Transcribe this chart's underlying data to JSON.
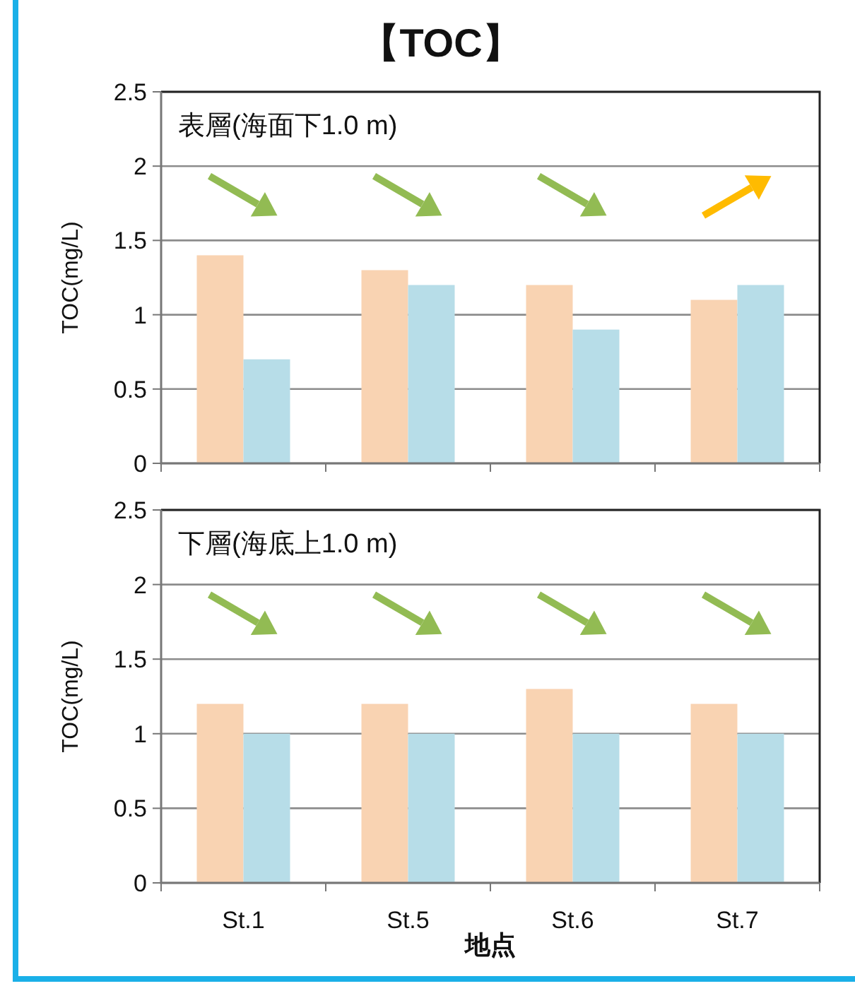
{
  "chart_data": [
    {
      "type": "bar",
      "title": "【TOC】",
      "subtitle": "表層(海面下1.0 m)",
      "ylabel": "TOC(mg/L)",
      "categories": [
        null,
        null,
        null,
        null
      ],
      "series": [
        {
          "color": "#f9d3b2",
          "values": [
            1.4,
            1.3,
            1.2,
            1.1
          ]
        },
        {
          "color": "#b7dde8",
          "values": [
            0.7,
            1.2,
            0.9,
            1.2
          ]
        }
      ],
      "ylim": [
        0,
        2.5
      ],
      "yticks": [
        0,
        0.5,
        1,
        1.5,
        2,
        2.5
      ],
      "grid": "y"
    },
    {
      "type": "bar",
      "subtitle": "下層(海底上1.0 m)",
      "ylabel": "TOC(mg/L)",
      "xlabel": "地点",
      "categories": [
        "St.1",
        "St.5",
        "St.6",
        "St.7"
      ],
      "series": [
        {
          "color": "#f9d3b2",
          "values": [
            1.2,
            1.2,
            1.3,
            1.2
          ]
        },
        {
          "color": "#b7dde8",
          "values": [
            1.0,
            1.0,
            1.0,
            1.0
          ]
        }
      ],
      "ylim": [
        0,
        2.5
      ],
      "yticks": [
        0,
        0.5,
        1,
        1.5,
        2,
        2.5
      ],
      "grid": "y"
    }
  ]
}
